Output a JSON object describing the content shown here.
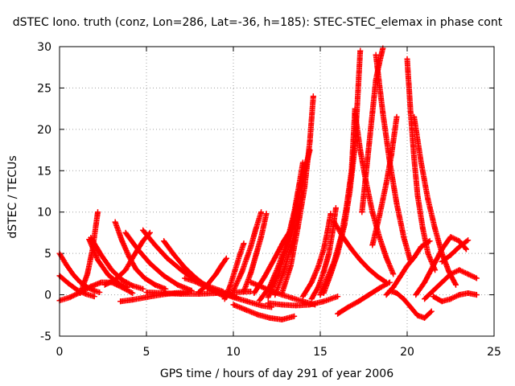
{
  "chart_data": {
    "type": "scatter",
    "title": "dSTEC Iono. truth (conz, Lon=286, Lat=-36, h=185): STEC-STEC_elemax in phase cont",
    "xlabel": "GPS time / hours of day 291 of year 2006",
    "ylabel": "dSTEC  / TECUs",
    "xlim": [
      0,
      25
    ],
    "ylim": [
      -5,
      30
    ],
    "x_ticks": [
      0,
      5,
      10,
      15,
      20,
      25
    ],
    "y_ticks": [
      -5,
      0,
      5,
      10,
      15,
      20,
      25,
      30
    ],
    "grid": true,
    "marker": "+",
    "color": "#ff0000",
    "series": [
      {
        "x": [
          0.0,
          0.4,
          0.8,
          1.2,
          1.6,
          2.0,
          2.3
        ],
        "y": [
          5.0,
          3.6,
          2.4,
          1.5,
          0.9,
          0.5,
          0.3
        ]
      },
      {
        "x": [
          0.0,
          0.5,
          1.0,
          1.5,
          2.0
        ],
        "y": [
          2.3,
          1.4,
          0.6,
          0.1,
          -0.2
        ]
      },
      {
        "x": [
          0.0,
          0.6,
          1.2,
          1.8,
          2.4,
          3.0,
          3.6,
          4.2
        ],
        "y": [
          -0.7,
          -0.3,
          0.3,
          1.0,
          1.5,
          1.5,
          0.9,
          0.2
        ]
      },
      {
        "x": [
          1.2,
          1.6,
          1.9,
          2.1,
          2.2
        ],
        "y": [
          0.2,
          2.5,
          5.5,
          8.5,
          10.0
        ]
      },
      {
        "x": [
          1.8,
          2.4,
          3.0,
          3.6,
          4.2,
          4.8
        ],
        "y": [
          6.9,
          4.8,
          3.0,
          1.8,
          1.1,
          0.7
        ]
      },
      {
        "x": [
          1.7,
          2.2,
          2.8,
          3.4,
          3.9
        ],
        "y": [
          6.7,
          4.2,
          2.4,
          1.4,
          0.9
        ]
      },
      {
        "x": [
          3.2,
          3.6,
          4.0,
          4.4,
          4.9,
          5.5,
          6.1
        ],
        "y": [
          8.8,
          6.5,
          4.6,
          3.1,
          2.0,
          1.2,
          0.7
        ]
      },
      {
        "x": [
          2.6,
          3.2,
          3.8,
          4.3,
          4.8,
          5.2
        ],
        "y": [
          1.2,
          1.8,
          3.0,
          4.8,
          6.5,
          7.5
        ]
      },
      {
        "x": [
          3.8,
          4.5,
          5.2,
          6.0,
          6.8,
          7.6
        ],
        "y": [
          7.5,
          5.5,
          3.8,
          2.3,
          1.2,
          0.5
        ]
      },
      {
        "x": [
          4.8,
          5.5,
          6.2,
          7.0,
          7.8,
          8.6,
          9.4
        ],
        "y": [
          7.8,
          6.0,
          4.4,
          3.0,
          1.8,
          1.0,
          0.4
        ]
      },
      {
        "x": [
          3.5,
          4.2,
          5.0,
          5.8,
          6.6,
          7.4
        ],
        "y": [
          -0.8,
          -0.6,
          -0.3,
          0.0,
          0.2,
          0.3
        ]
      },
      {
        "x": [
          6.0,
          6.6,
          7.2,
          7.8,
          8.4,
          9.0,
          9.6
        ],
        "y": [
          6.5,
          4.8,
          3.3,
          2.1,
          1.1,
          0.3,
          -0.3
        ]
      },
      {
        "x": [
          5.0,
          6.0,
          7.0,
          8.0,
          9.0,
          10.0,
          11.0
        ],
        "y": [
          0.3,
          0.2,
          0.1,
          0.1,
          0.2,
          0.3,
          0.4
        ]
      },
      {
        "x": [
          7.2,
          7.8,
          8.4,
          9.0,
          9.6,
          10.2
        ],
        "y": [
          2.0,
          1.6,
          1.0,
          0.5,
          0.1,
          -0.3
        ]
      },
      {
        "x": [
          8.0,
          8.5,
          9.0,
          9.3,
          9.6
        ],
        "y": [
          0.3,
          1.2,
          2.5,
          3.5,
          4.4
        ]
      },
      {
        "x": [
          8.5,
          9.2,
          10.0,
          10.8,
          11.6,
          12.2
        ],
        "y": [
          0.8,
          0.3,
          -0.3,
          -0.8,
          -1.3,
          -1.5
        ]
      },
      {
        "x": [
          9.5,
          9.8,
          10.1,
          10.4,
          10.6
        ],
        "y": [
          -0.5,
          1.0,
          3.0,
          5.0,
          6.2
        ]
      },
      {
        "x": [
          10.0,
          10.5,
          11.0,
          11.3,
          11.6
        ],
        "y": [
          0.5,
          2.8,
          5.8,
          8.0,
          10.0
        ]
      },
      {
        "x": [
          10.0,
          10.7,
          11.4,
          12.1,
          12.8,
          13.5
        ],
        "y": [
          -1.2,
          -1.8,
          -2.4,
          -2.8,
          -3.0,
          -2.6
        ]
      },
      {
        "x": [
          10.6,
          11.0,
          11.3,
          11.6,
          11.9
        ],
        "y": [
          0.4,
          2.6,
          4.8,
          7.0,
          9.8
        ]
      },
      {
        "x": [
          11.0,
          11.6,
          12.2,
          12.8,
          13.4,
          14.0,
          14.7
        ],
        "y": [
          1.5,
          1.0,
          0.4,
          0.0,
          -0.4,
          -0.8,
          -1.2
        ]
      },
      {
        "x": [
          11.2,
          11.8,
          12.4,
          12.9,
          13.5
        ],
        "y": [
          0.2,
          2.2,
          4.5,
          6.5,
          8.5
        ]
      },
      {
        "x": [
          11.5,
          12.1,
          12.6,
          13.1,
          13.5,
          13.8,
          14.0
        ],
        "y": [
          -0.7,
          1.0,
          3.5,
          6.5,
          10.0,
          13.5,
          16.0
        ]
      },
      {
        "x": [
          12.0,
          12.6,
          13.1,
          13.5,
          13.8,
          14.1
        ],
        "y": [
          -0.3,
          2.5,
          6.0,
          9.5,
          12.5,
          15.5
        ]
      },
      {
        "x": [
          12.4,
          12.9,
          13.4,
          13.8,
          14.1,
          14.4
        ],
        "y": [
          0.0,
          2.8,
          6.5,
          10.5,
          15.0,
          17.5
        ]
      },
      {
        "x": [
          12.8,
          13.3,
          13.7,
          14.1,
          14.4,
          14.6
        ],
        "y": [
          0.2,
          3.5,
          8.0,
          13.0,
          18.5,
          24.0
        ]
      },
      {
        "x": [
          12.0,
          12.8,
          13.6,
          14.4,
          15.2,
          16.0
        ],
        "y": [
          -1.0,
          -1.2,
          -1.3,
          -1.2,
          -0.8,
          -0.2
        ]
      },
      {
        "x": [
          14.0,
          14.5,
          14.9,
          15.2,
          15.4,
          15.6
        ],
        "y": [
          -0.2,
          1.5,
          3.5,
          5.5,
          7.5,
          9.8
        ]
      },
      {
        "x": [
          14.5,
          14.9,
          15.2,
          15.5,
          15.7,
          15.9
        ],
        "y": [
          -0.5,
          1.0,
          2.8,
          5.0,
          7.5,
          10.5
        ]
      },
      {
        "x": [
          15.0,
          15.4,
          15.8,
          16.2,
          16.5,
          16.8,
          17.0
        ],
        "y": [
          0.0,
          2.0,
          4.0,
          7.0,
          10.5,
          15.0,
          22.5
        ]
      },
      {
        "x": [
          15.2,
          15.6,
          16.0,
          16.4,
          16.7,
          17.0,
          17.3
        ],
        "y": [
          0.2,
          2.5,
          5.0,
          8.5,
          12.5,
          18.0,
          29.5
        ]
      },
      {
        "x": [
          15.8,
          16.3,
          16.8,
          17.3,
          17.8,
          18.3,
          18.8
        ],
        "y": [
          8.8,
          7.0,
          5.5,
          4.2,
          3.1,
          2.2,
          1.5
        ]
      },
      {
        "x": [
          16.0,
          16.6,
          17.2,
          17.8,
          18.4,
          19.0
        ],
        "y": [
          -2.3,
          -1.5,
          -0.8,
          0.0,
          0.8,
          1.5
        ]
      },
      {
        "x": [
          17.0,
          17.3,
          17.6,
          18.0,
          18.4,
          18.8,
          19.2
        ],
        "y": [
          22.0,
          17.5,
          14.0,
          10.0,
          7.0,
          4.5,
          2.5
        ]
      },
      {
        "x": [
          17.4,
          17.7,
          18.0,
          18.2,
          18.4,
          18.6
        ],
        "y": [
          10.0,
          16.0,
          22.0,
          26.0,
          28.0,
          29.8
        ]
      },
      {
        "x": [
          18.2,
          18.6,
          19.0,
          19.4,
          19.8,
          20.2
        ],
        "y": [
          29.0,
          22.0,
          16.0,
          11.0,
          7.0,
          4.0
        ]
      },
      {
        "x": [
          18.0,
          18.4,
          18.8,
          19.1,
          19.4
        ],
        "y": [
          6.0,
          9.5,
          13.5,
          17.0,
          21.5
        ]
      },
      {
        "x": [
          18.8,
          19.2,
          19.6,
          20.0,
          20.4,
          20.8,
          21.3
        ],
        "y": [
          0.0,
          0.9,
          2.2,
          3.5,
          4.5,
          5.8,
          6.5
        ]
      },
      {
        "x": [
          19.0,
          19.4,
          19.8,
          20.2,
          20.6,
          21.0,
          21.4
        ],
        "y": [
          0.5,
          0.2,
          -0.5,
          -1.5,
          -2.5,
          -2.8,
          -2.0
        ]
      },
      {
        "x": [
          20.0,
          20.2,
          20.4,
          20.6,
          20.9,
          21.2,
          21.6
        ],
        "y": [
          28.5,
          22.0,
          16.5,
          12.0,
          8.0,
          5.0,
          3.0
        ]
      },
      {
        "x": [
          20.4,
          20.8,
          21.2,
          21.6,
          22.0,
          22.4,
          22.8
        ],
        "y": [
          21.5,
          16.0,
          11.5,
          8.0,
          5.0,
          2.8,
          1.2
        ]
      },
      {
        "x": [
          20.5,
          21.0,
          21.5,
          22.0,
          22.5,
          23.0,
          23.4
        ],
        "y": [
          0.0,
          1.5,
          3.5,
          5.5,
          7.0,
          6.5,
          5.5
        ]
      },
      {
        "x": [
          21.0,
          21.5,
          22.0,
          22.5,
          23.0,
          23.5,
          24.0
        ],
        "y": [
          -0.5,
          0.5,
          1.5,
          2.5,
          3.0,
          2.5,
          2.0
        ]
      },
      {
        "x": [
          21.5,
          22.0,
          22.5,
          23.0,
          23.5,
          24.0
        ],
        "y": [
          -0.2,
          -0.8,
          -0.5,
          0.0,
          0.2,
          0.0
        ]
      },
      {
        "x": [
          22.0,
          22.5,
          23.0,
          23.5
        ],
        "y": [
          4.0,
          4.8,
          5.8,
          6.6
        ]
      }
    ]
  }
}
